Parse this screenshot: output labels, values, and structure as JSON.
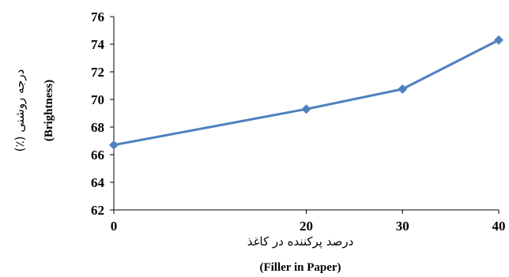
{
  "chart_data": {
    "type": "line",
    "x": [
      0,
      20,
      30,
      40
    ],
    "x_tick_labels": [
      "0",
      "20",
      "30",
      "40"
    ],
    "series": [
      {
        "values": [
          66.7,
          69.3,
          70.75,
          74.3
        ]
      }
    ],
    "ylim": [
      62,
      76
    ],
    "y_ticks": [
      "62",
      "64",
      "66",
      "68",
      "70",
      "72",
      "74",
      "76"
    ],
    "xlabel_fa": "درصد پرکننده در کاغذ",
    "xlabel_en": "(Filler in Paper)",
    "ylabel_fa": "درجه روشنی (٪)",
    "ylabel_en": "(Brightness)",
    "grid": false,
    "legend": "none",
    "colors": {
      "line": "#4F81BD",
      "marker": "#4F81BD",
      "axis": "#000000"
    }
  }
}
